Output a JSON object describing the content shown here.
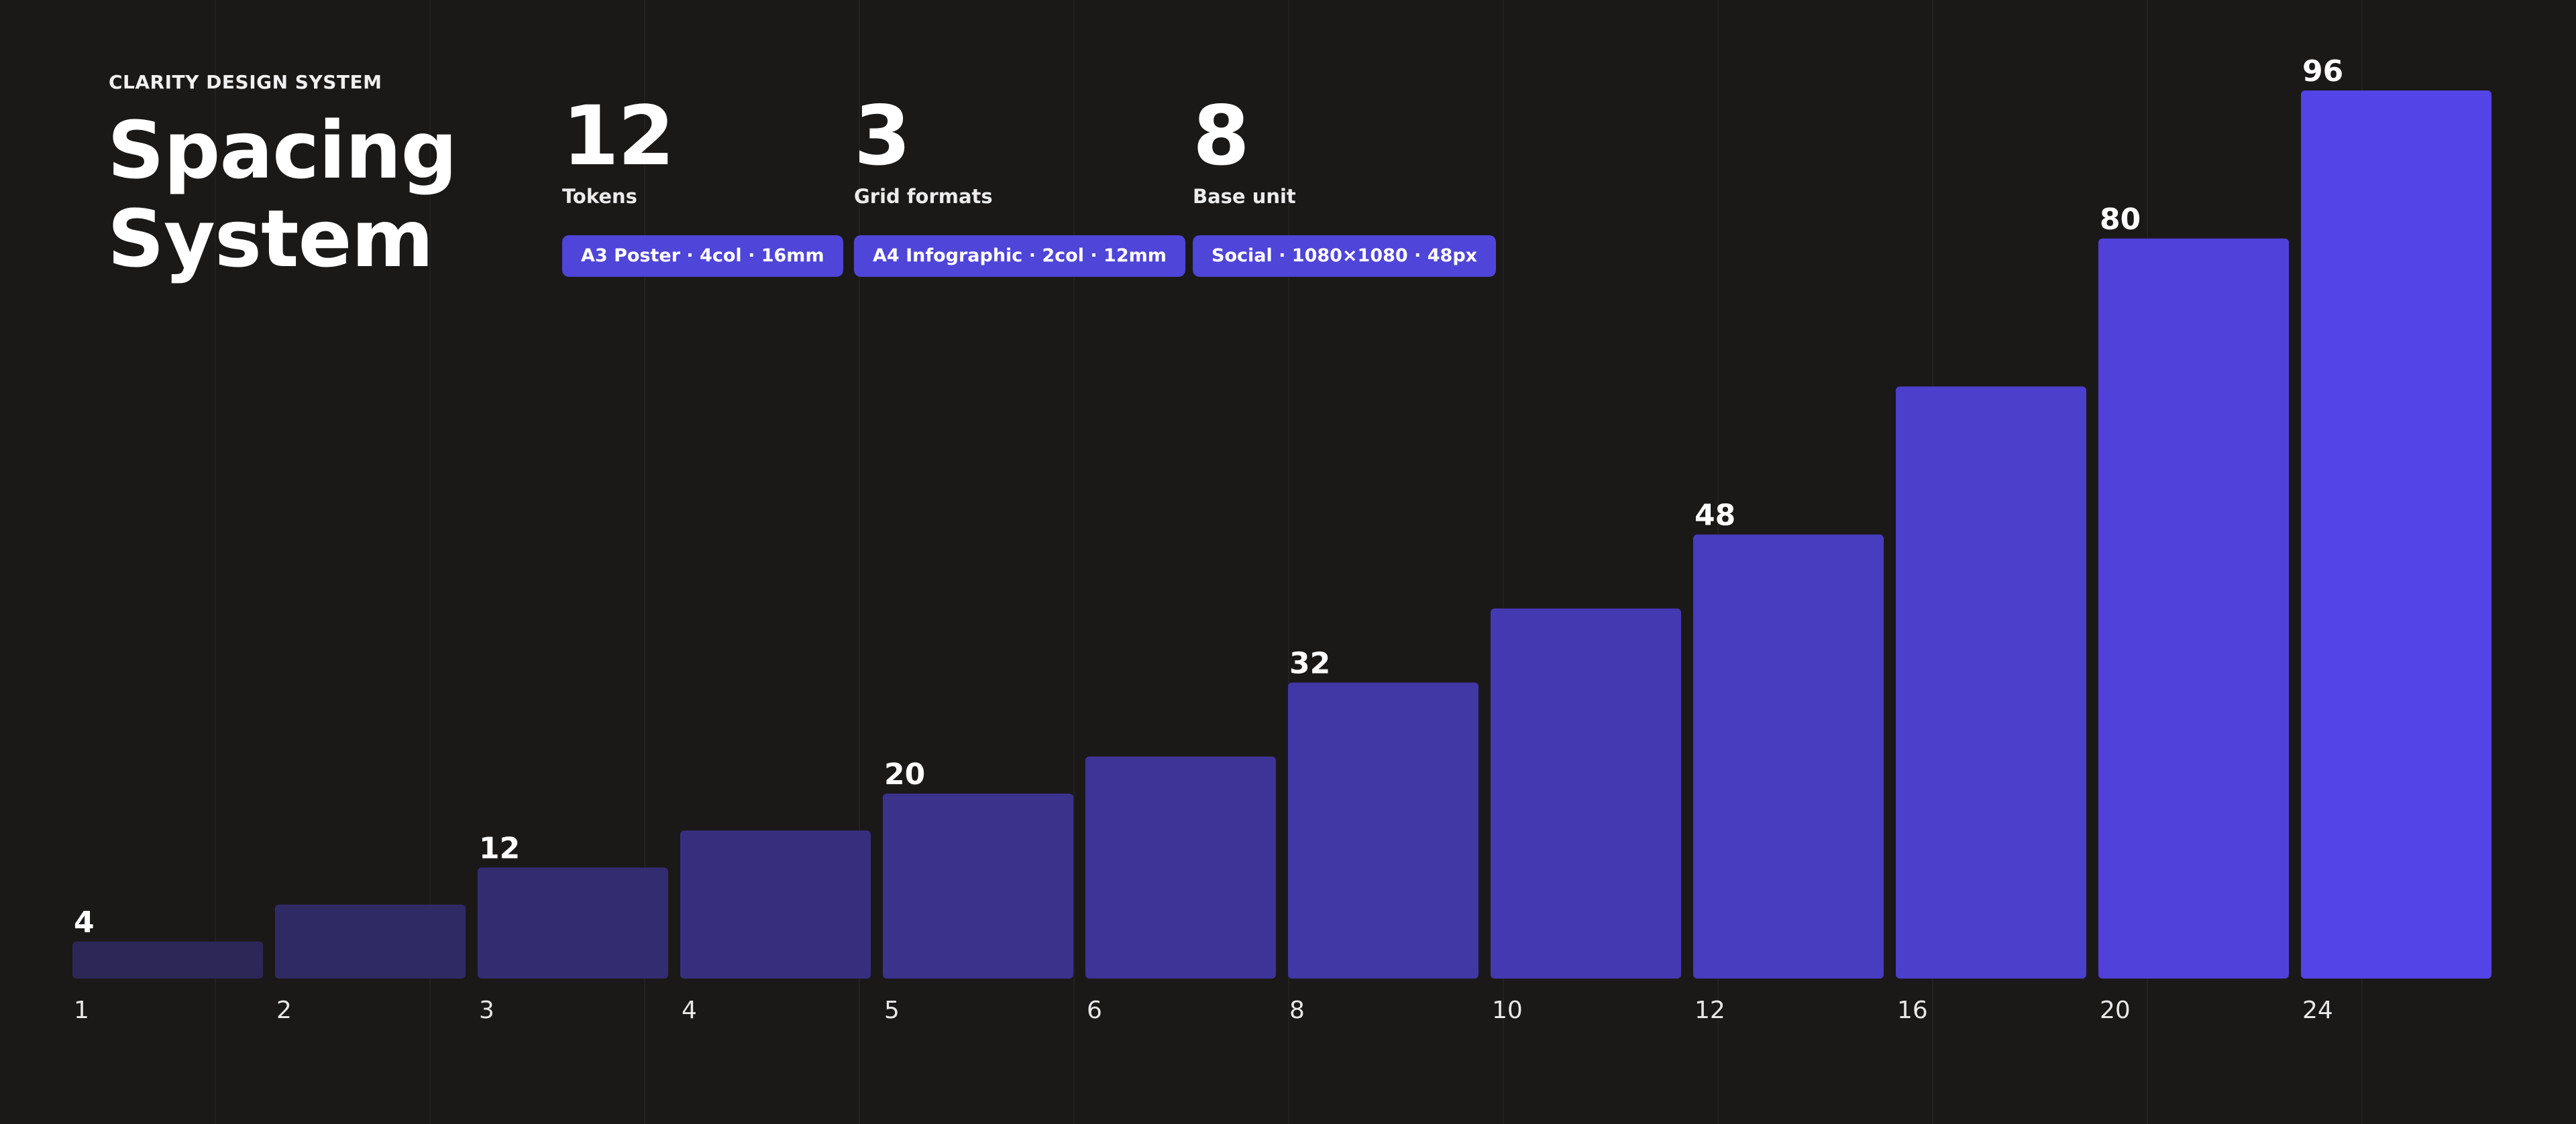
{
  "header": {
    "eyebrow": "CLARITY DESIGN SYSTEM",
    "title_line1": "Spacing",
    "title_line2": "System"
  },
  "stats": [
    {
      "value": "12",
      "label": "Tokens",
      "pill": "A3 Poster · 4col · 16mm"
    },
    {
      "value": "3",
      "label": "Grid formats",
      "pill": "A4 Infographic · 2col · 12mm"
    },
    {
      "value": "8",
      "label": "Base unit",
      "pill": "Social · 1080×1080 · 48px"
    }
  ],
  "colors": {
    "background": "#1b1918",
    "gridline": "#232120",
    "bar_start": "#2d2757",
    "bar_end": "#5244e6",
    "pill": "#4f45d8",
    "text": "#ffffff",
    "tick": "#e8e8e8"
  },
  "chart_data": {
    "type": "bar",
    "categories": [
      "1",
      "2",
      "3",
      "4",
      "5",
      "6",
      "8",
      "10",
      "12",
      "16",
      "20",
      "24"
    ],
    "values": [
      4,
      8,
      12,
      16,
      20,
      24,
      32,
      40,
      48,
      64,
      80,
      96
    ],
    "data_labels": [
      "4",
      "",
      "12",
      "",
      "20",
      "",
      "32",
      "",
      "48",
      "",
      "80",
      "96"
    ],
    "title": "",
    "xlabel": "",
    "ylabel": "",
    "ylim": [
      0,
      96
    ],
    "grid": "vertical",
    "legend": "none"
  }
}
